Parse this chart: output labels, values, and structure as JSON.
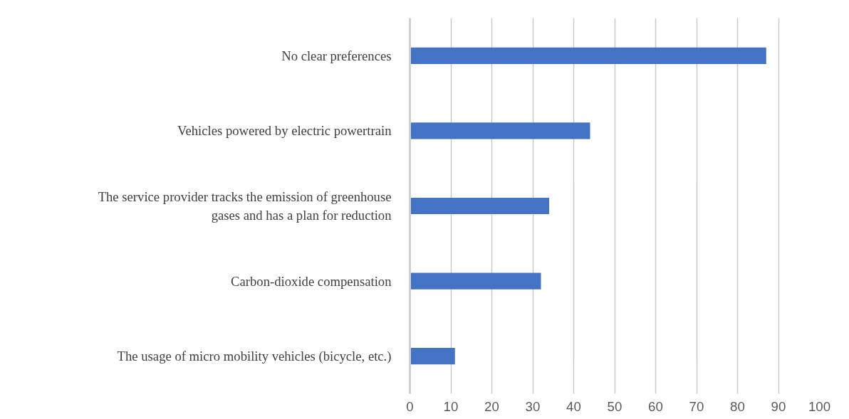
{
  "chart_data": {
    "type": "bar",
    "orientation": "horizontal",
    "categories": [
      "No clear preferences",
      "Vehicles powered by electric powertrain",
      "The service provider tracks the emission of greenhouse\ngases and has a plan for reduction",
      "Carbon-dioxide compensation",
      "The usage of micro mobility vehicles (bicycle, etc.)"
    ],
    "values": [
      87,
      44,
      34,
      32,
      11
    ],
    "color": "#4472c4",
    "xlim": [
      0,
      100
    ],
    "xticks": [
      0,
      10,
      20,
      30,
      40,
      50,
      60,
      70,
      80,
      90,
      100
    ],
    "grid": "x"
  }
}
